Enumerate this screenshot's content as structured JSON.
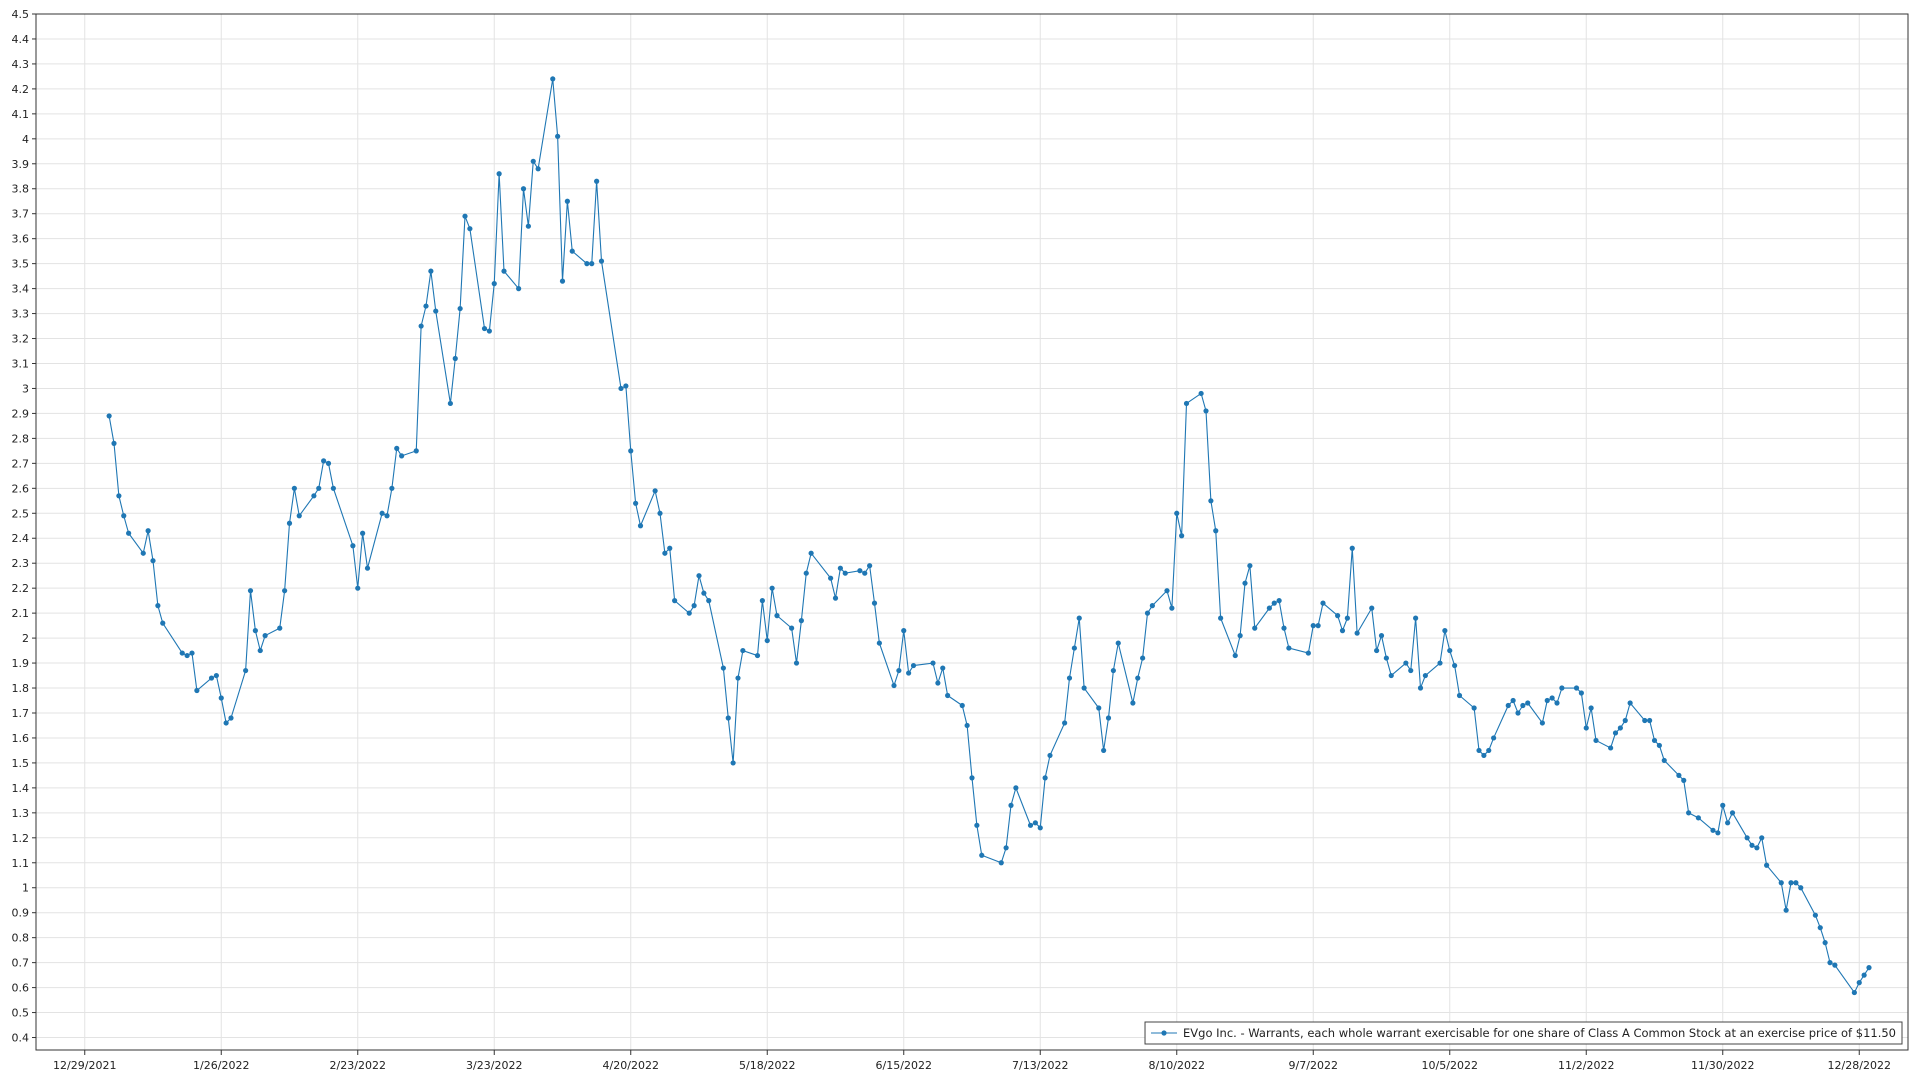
{
  "chart_data": {
    "type": "line",
    "title": "",
    "xlabel": "",
    "ylabel": "",
    "ylim": [
      0.35,
      4.5
    ],
    "y_ticks": [
      "0.4",
      "0.5",
      "0.6",
      "0.7",
      "0.8",
      "0.9",
      "1",
      "1.1",
      "1.2",
      "1.3",
      "1.4",
      "1.5",
      "1.6",
      "1.7",
      "1.8",
      "1.9",
      "2",
      "2.1",
      "2.2",
      "2.3",
      "2.4",
      "2.5",
      "2.6",
      "2.7",
      "2.8",
      "2.9",
      "3",
      "3.1",
      "3.2",
      "3.3",
      "3.4",
      "3.5",
      "3.6",
      "3.7",
      "3.8",
      "3.9",
      "4",
      "4.1",
      "4.2",
      "4.3",
      "4.4",
      "4.5"
    ],
    "x_ticks": [
      "12/29/2021",
      "1/26/2022",
      "2/23/2022",
      "3/23/2022",
      "4/20/2022",
      "5/18/2022",
      "6/15/2022",
      "7/13/2022",
      "8/10/2022",
      "9/7/2022",
      "10/5/2022",
      "11/2/2022",
      "11/30/2022",
      "12/28/2022"
    ],
    "grid": true,
    "legend_position": "bottom-right",
    "series_color": "#1f77b4",
    "series": [
      {
        "name": "EVgo Inc. - Warrants, each whole warrant exercisable for one share of Class A Common Stock at an exercise price of $11.50",
        "x": [
          "2022-01-03",
          "2022-01-04",
          "2022-01-05",
          "2022-01-06",
          "2022-01-07",
          "2022-01-10",
          "2022-01-11",
          "2022-01-12",
          "2022-01-13",
          "2022-01-14",
          "2022-01-18",
          "2022-01-19",
          "2022-01-20",
          "2022-01-21",
          "2022-01-24",
          "2022-01-25",
          "2022-01-26",
          "2022-01-27",
          "2022-01-28",
          "2022-01-31",
          "2022-02-01",
          "2022-02-02",
          "2022-02-03",
          "2022-02-04",
          "2022-02-07",
          "2022-02-08",
          "2022-02-09",
          "2022-02-10",
          "2022-02-11",
          "2022-02-14",
          "2022-02-15",
          "2022-02-16",
          "2022-02-17",
          "2022-02-18",
          "2022-02-22",
          "2022-02-23",
          "2022-02-24",
          "2022-02-25",
          "2022-02-28",
          "2022-03-01",
          "2022-03-02",
          "2022-03-03",
          "2022-03-04",
          "2022-03-07",
          "2022-03-08",
          "2022-03-09",
          "2022-03-10",
          "2022-03-11",
          "2022-03-14",
          "2022-03-15",
          "2022-03-16",
          "2022-03-17",
          "2022-03-18",
          "2022-03-21",
          "2022-03-22",
          "2022-03-23",
          "2022-03-24",
          "2022-03-25",
          "2022-03-28",
          "2022-03-29",
          "2022-03-30",
          "2022-03-31",
          "2022-04-01",
          "2022-04-04",
          "2022-04-05",
          "2022-04-06",
          "2022-04-07",
          "2022-04-08",
          "2022-04-11",
          "2022-04-12",
          "2022-04-13",
          "2022-04-14",
          "2022-04-18",
          "2022-04-19",
          "2022-04-20",
          "2022-04-21",
          "2022-04-22",
          "2022-04-25",
          "2022-04-26",
          "2022-04-27",
          "2022-04-28",
          "2022-04-29",
          "2022-05-02",
          "2022-05-03",
          "2022-05-04",
          "2022-05-05",
          "2022-05-06",
          "2022-05-09",
          "2022-05-10",
          "2022-05-11",
          "2022-05-12",
          "2022-05-13",
          "2022-05-16",
          "2022-05-17",
          "2022-05-18",
          "2022-05-19",
          "2022-05-20",
          "2022-05-23",
          "2022-05-24",
          "2022-05-25",
          "2022-05-26",
          "2022-05-27",
          "2022-05-31",
          "2022-06-01",
          "2022-06-02",
          "2022-06-03",
          "2022-06-06",
          "2022-06-07",
          "2022-06-08",
          "2022-06-09",
          "2022-06-10",
          "2022-06-13",
          "2022-06-14",
          "2022-06-15",
          "2022-06-16",
          "2022-06-17",
          "2022-06-21",
          "2022-06-22",
          "2022-06-23",
          "2022-06-24",
          "2022-06-27",
          "2022-06-28",
          "2022-06-29",
          "2022-06-30",
          "2022-07-01",
          "2022-07-05",
          "2022-07-06",
          "2022-07-07",
          "2022-07-08",
          "2022-07-11",
          "2022-07-12",
          "2022-07-13",
          "2022-07-14",
          "2022-07-15",
          "2022-07-18",
          "2022-07-19",
          "2022-07-20",
          "2022-07-21",
          "2022-07-22",
          "2022-07-25",
          "2022-07-26",
          "2022-07-27",
          "2022-07-28",
          "2022-07-29",
          "2022-08-01",
          "2022-08-02",
          "2022-08-03",
          "2022-08-04",
          "2022-08-05",
          "2022-08-08",
          "2022-08-09",
          "2022-08-10",
          "2022-08-11",
          "2022-08-12",
          "2022-08-15",
          "2022-08-16",
          "2022-08-17",
          "2022-08-18",
          "2022-08-19",
          "2022-08-22",
          "2022-08-23",
          "2022-08-24",
          "2022-08-25",
          "2022-08-26",
          "2022-08-29",
          "2022-08-30",
          "2022-08-31",
          "2022-09-01",
          "2022-09-02",
          "2022-09-06",
          "2022-09-07",
          "2022-09-08",
          "2022-09-09",
          "2022-09-12",
          "2022-09-13",
          "2022-09-14",
          "2022-09-15",
          "2022-09-16",
          "2022-09-19",
          "2022-09-20",
          "2022-09-21",
          "2022-09-22",
          "2022-09-23",
          "2022-09-26",
          "2022-09-27",
          "2022-09-28",
          "2022-09-29",
          "2022-09-30",
          "2022-10-03",
          "2022-10-04",
          "2022-10-05",
          "2022-10-06",
          "2022-10-07",
          "2022-10-10",
          "2022-10-11",
          "2022-10-12",
          "2022-10-13",
          "2022-10-14",
          "2022-10-17",
          "2022-10-18",
          "2022-10-19",
          "2022-10-20",
          "2022-10-21",
          "2022-10-24",
          "2022-10-25",
          "2022-10-26",
          "2022-10-27",
          "2022-10-28",
          "2022-10-31",
          "2022-11-01",
          "2022-11-02",
          "2022-11-03",
          "2022-11-04",
          "2022-11-07",
          "2022-11-08",
          "2022-11-09",
          "2022-11-10",
          "2022-11-11",
          "2022-11-14",
          "2022-11-15",
          "2022-11-16",
          "2022-11-17",
          "2022-11-18",
          "2022-11-21",
          "2022-11-22",
          "2022-11-23",
          "2022-11-25",
          "2022-11-28",
          "2022-11-29",
          "2022-11-30",
          "2022-12-01",
          "2022-12-02",
          "2022-12-05",
          "2022-12-06",
          "2022-12-07",
          "2022-12-08",
          "2022-12-09",
          "2022-12-12",
          "2022-12-13",
          "2022-12-14",
          "2022-12-15",
          "2022-12-16",
          "2022-12-19",
          "2022-12-20",
          "2022-12-21",
          "2022-12-22",
          "2022-12-23",
          "2022-12-27",
          "2022-12-28",
          "2022-12-29",
          "2022-12-30"
        ],
        "values": [
          2.89,
          2.78,
          2.57,
          2.49,
          2.42,
          2.34,
          2.43,
          2.31,
          2.13,
          2.06,
          1.94,
          1.93,
          1.94,
          1.79,
          1.84,
          1.85,
          1.76,
          1.66,
          1.68,
          1.87,
          2.19,
          2.03,
          1.95,
          2.01,
          2.04,
          2.19,
          2.46,
          2.6,
          2.49,
          2.57,
          2.6,
          2.71,
          2.7,
          2.6,
          2.37,
          2.2,
          2.42,
          2.28,
          2.5,
          2.49,
          2.6,
          2.76,
          2.73,
          2.75,
          3.25,
          3.33,
          3.47,
          3.31,
          2.94,
          3.12,
          3.32,
          3.69,
          3.64,
          3.24,
          3.23,
          3.42,
          3.86,
          3.47,
          3.4,
          3.8,
          3.65,
          3.91,
          3.88,
          4.24,
          4.01,
          3.43,
          3.75,
          3.55,
          3.5,
          3.5,
          3.83,
          3.51,
          3.0,
          3.01,
          2.75,
          2.54,
          2.45,
          2.59,
          2.5,
          2.34,
          2.36,
          2.15,
          2.1,
          2.13,
          2.25,
          2.18,
          2.15,
          1.88,
          1.68,
          1.5,
          1.84,
          1.95,
          1.93,
          2.15,
          1.99,
          2.2,
          2.09,
          2.04,
          1.9,
          2.07,
          2.26,
          2.34,
          2.24,
          2.16,
          2.28,
          2.26,
          2.27,
          2.26,
          2.29,
          2.14,
          1.98,
          1.81,
          1.87,
          2.03,
          1.86,
          1.89,
          1.9,
          1.82,
          1.88,
          1.77,
          1.73,
          1.65,
          1.44,
          1.25,
          1.13,
          1.1,
          1.16,
          1.33,
          1.4,
          1.25,
          1.26,
          1.24,
          1.44,
          1.53,
          1.66,
          1.84,
          1.96,
          2.08,
          1.8,
          1.72,
          1.55,
          1.68,
          1.87,
          1.98,
          1.74,
          1.84,
          1.92,
          2.1,
          2.13,
          2.19,
          2.12,
          2.5,
          2.41,
          2.94,
          2.98,
          2.91,
          2.55,
          2.43,
          2.08,
          1.93,
          2.01,
          2.22,
          2.29,
          2.04,
          2.12,
          2.14,
          2.15,
          2.04,
          1.96,
          1.94,
          2.05,
          2.05,
          2.14,
          2.09,
          2.03,
          2.08,
          2.36,
          2.02,
          2.12,
          1.95,
          2.01,
          1.92,
          1.85,
          1.9,
          1.87,
          2.08,
          1.8,
          1.85,
          1.9,
          2.03,
          1.95,
          1.89,
          1.77,
          1.72,
          1.55,
          1.53,
          1.55,
          1.6,
          1.73,
          1.75,
          1.7,
          1.73,
          1.74,
          1.66,
          1.75,
          1.76,
          1.74,
          1.8,
          1.8,
          1.78,
          1.64,
          1.72,
          1.59,
          1.56,
          1.62,
          1.64,
          1.67,
          1.74,
          1.67,
          1.67,
          1.59,
          1.57,
          1.51,
          1.45,
          1.43,
          1.3,
          1.28,
          1.23,
          1.22,
          1.33,
          1.26,
          1.3,
          1.2,
          1.17,
          1.16,
          1.2,
          1.09,
          1.02,
          0.91,
          1.02,
          1.02,
          1.0,
          0.89,
          0.84,
          0.78,
          0.7,
          0.69,
          0.58,
          0.62,
          0.65,
          0.68
        ]
      }
    ]
  }
}
